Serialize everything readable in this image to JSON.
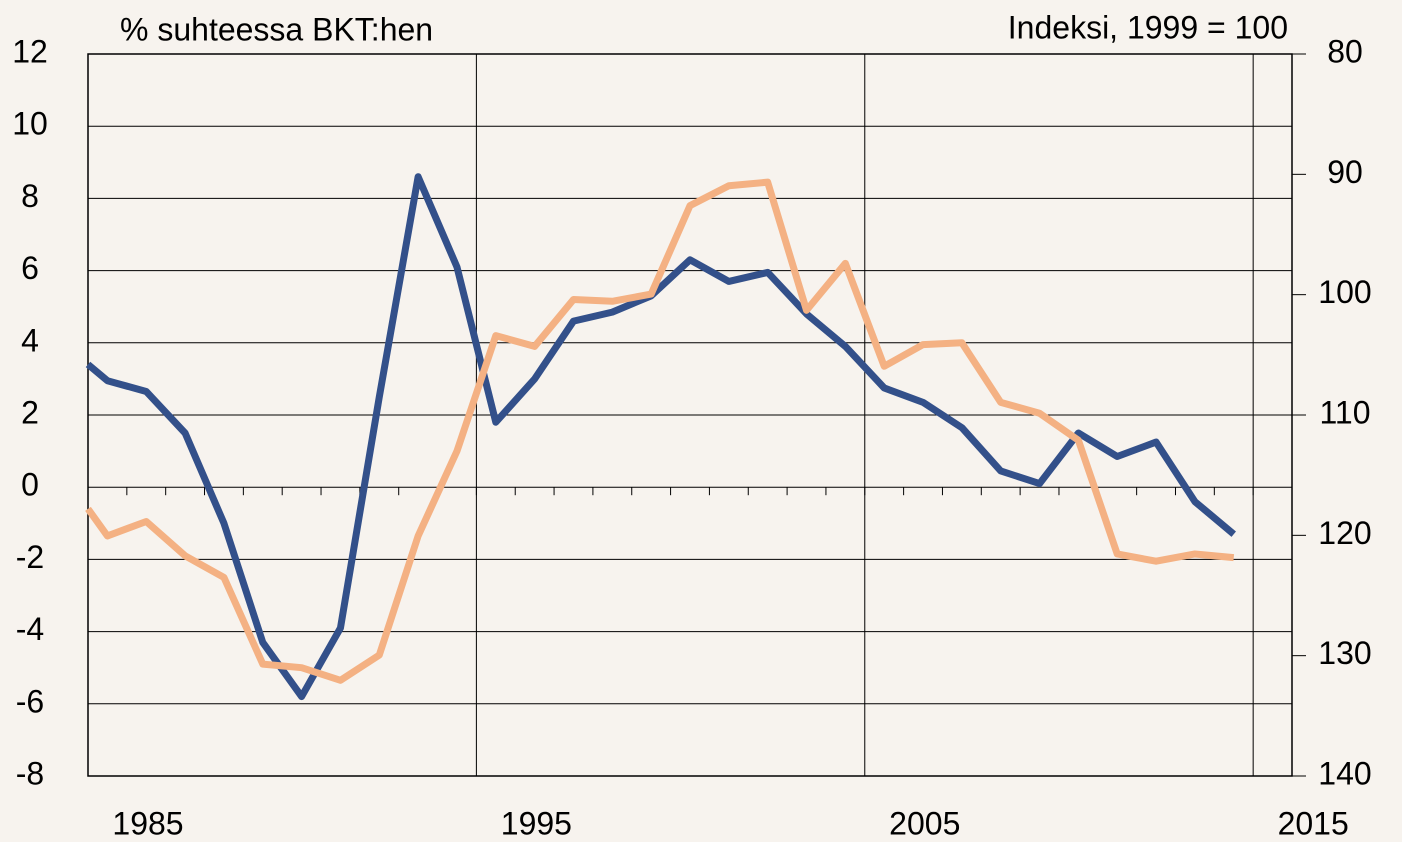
{
  "chart_data": {
    "type": "line",
    "y_label": "% suhteessa BKT:hen",
    "y2_label": "Indeksi, 1999 = 100",
    "x": [
      1985,
      1985.5,
      1986.5,
      1987.5,
      1988.5,
      1989.5,
      1990.5,
      1991.5,
      1992.5,
      1993.5,
      1994.5,
      1995.5,
      1996.5,
      1997.5,
      1998.5,
      1999.5,
      2000.5,
      2001.5,
      2002.5,
      2003.5,
      2004.5,
      2005.5,
      2006.5,
      2007.5,
      2008.5,
      2009.5,
      2010.5,
      2011.5,
      2012.5,
      2013.5,
      2014.5
    ],
    "series": [
      {
        "color": "#33508a",
        "axis": "y",
        "values": [
          3.4,
          2.95,
          2.65,
          1.5,
          -1.0,
          -4.3,
          -5.8,
          -3.9,
          2.5,
          8.6,
          6.1,
          1.8,
          3.0,
          4.6,
          4.85,
          5.3,
          6.3,
          5.7,
          5.95,
          4.8,
          3.9,
          2.75,
          2.35,
          1.65,
          0.45,
          0.1,
          1.5,
          0.85,
          1.25,
          -0.4,
          -1.3
        ]
      },
      {
        "color": "#f4b183",
        "axis": "y2",
        "values": [
          117.8,
          120.05,
          118.85,
          121.7,
          123.5,
          130.7,
          131,
          132.05,
          129.95,
          120.05,
          113,
          103.4,
          104.3,
          100.4,
          100.55,
          99.95,
          92.6,
          90.95,
          90.65,
          101.3,
          97.4,
          105.95,
          104.15,
          104,
          108.95,
          109.85,
          112.1,
          121.55,
          122.15,
          121.55,
          121.85
        ]
      }
    ],
    "xlim": [
      1985,
      2016
    ],
    "xticks": [
      1985,
      1995,
      2005,
      2015
    ],
    "ylim": [
      -8,
      12
    ],
    "yticks": [
      -8,
      -6,
      -4,
      -2,
      0,
      2,
      4,
      6,
      8,
      10,
      12
    ],
    "y2lim": [
      140,
      80
    ],
    "y2ticks": [
      80,
      90,
      100,
      110,
      120,
      130,
      140
    ],
    "grid": true
  }
}
